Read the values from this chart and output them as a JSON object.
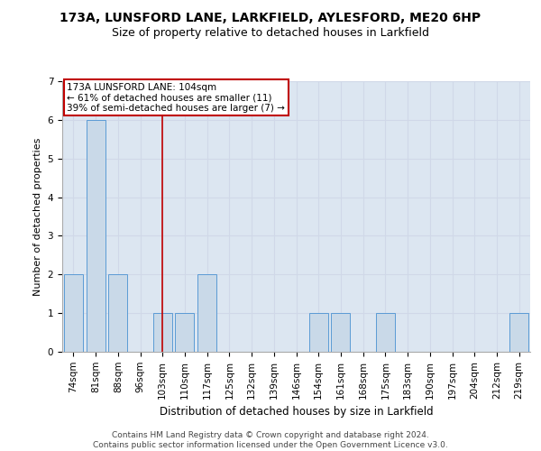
{
  "title1": "173A, LUNSFORD LANE, LARKFIELD, AYLESFORD, ME20 6HP",
  "title2": "Size of property relative to detached houses in Larkfield",
  "xlabel": "Distribution of detached houses by size in Larkfield",
  "ylabel": "Number of detached properties",
  "categories": [
    "74sqm",
    "81sqm",
    "88sqm",
    "96sqm",
    "103sqm",
    "110sqm",
    "117sqm",
    "125sqm",
    "132sqm",
    "139sqm",
    "146sqm",
    "154sqm",
    "161sqm",
    "168sqm",
    "175sqm",
    "183sqm",
    "190sqm",
    "197sqm",
    "204sqm",
    "212sqm",
    "219sqm"
  ],
  "values": [
    2,
    6,
    2,
    0,
    1,
    1,
    2,
    0,
    0,
    0,
    0,
    1,
    1,
    0,
    1,
    0,
    0,
    0,
    0,
    0,
    1
  ],
  "bar_color": "#c9d9e8",
  "bar_edge_color": "#5b9bd5",
  "highlight_index": 4,
  "highlight_color": "#c00000",
  "ylim": [
    0,
    7
  ],
  "yticks": [
    0,
    1,
    2,
    3,
    4,
    5,
    6,
    7
  ],
  "annotation_text": "173A LUNSFORD LANE: 104sqm\n← 61% of detached houses are smaller (11)\n39% of semi-detached houses are larger (7) →",
  "annotation_box_color": "#ffffff",
  "annotation_box_edge_color": "#c00000",
  "footer_line1": "Contains HM Land Registry data © Crown copyright and database right 2024.",
  "footer_line2": "Contains public sector information licensed under the Open Government Licence v3.0.",
  "grid_color": "#d0d8e8",
  "background_color": "#dce6f1",
  "title1_fontsize": 10,
  "title2_fontsize": 9,
  "xlabel_fontsize": 8.5,
  "ylabel_fontsize": 8,
  "tick_fontsize": 7.5,
  "annotation_fontsize": 7.5,
  "footer_fontsize": 6.5
}
